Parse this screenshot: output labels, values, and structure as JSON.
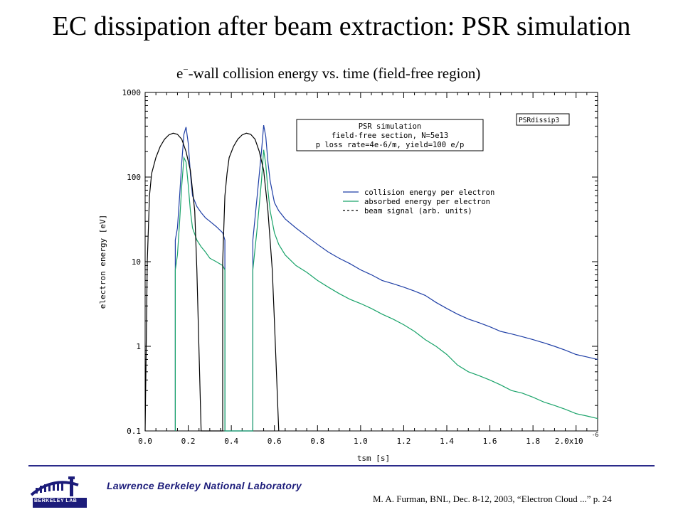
{
  "slide": {
    "title": "EC dissipation after beam extraction: PSR simulation",
    "chart_title_prefix": "e",
    "chart_title_sup": "−",
    "chart_title_rest": "-wall collision energy vs. time (field-free region)"
  },
  "footer": {
    "lab_name": "Lawrence Berkeley National Laboratory",
    "citation": "M. A. Furman, BNL, Dec. 8-12, 2003, “Electron Cloud ...”  p. 24",
    "logo_text": "BERKELEY LAB"
  },
  "colors": {
    "collision": "#1f3fa6",
    "absorbed": "#1aa36a",
    "beam": "#000000",
    "navy": "#1c1c7a"
  },
  "chart_data": {
    "type": "line",
    "tag_label": "PSRdissip3",
    "info_box": [
      "PSR simulation",
      "field-free section, N=5e13",
      "p loss rate=4e-6/m, yield=100 e/p"
    ],
    "xlabel": "tsm [s]",
    "ylabel": "electron energy [eV]",
    "x_scale_label": "2.0x10",
    "x_scale_exp": "-6",
    "xlim": [
      0.0,
      2.1
    ],
    "ylim": [
      0.1,
      1000
    ],
    "yscale": "log",
    "x_ticks": [
      0.0,
      0.2,
      0.4,
      0.6,
      0.8,
      1.0,
      1.2,
      1.4,
      1.6,
      1.8
    ],
    "x_tick_labels": [
      "0.0",
      "0.2",
      "0.4",
      "0.6",
      "0.8",
      "1.0",
      "1.2",
      "1.4",
      "1.6",
      "1.8"
    ],
    "y_ticks": [
      0.1,
      1,
      10,
      100,
      1000
    ],
    "y_tick_labels": [
      "0.1",
      "1",
      "10",
      "100",
      "1000"
    ],
    "legend": [
      "collision energy per electron",
      "absorbed energy per electron",
      "beam signal (arb. units)"
    ],
    "series": [
      {
        "name": "collision energy per electron",
        "style": "solid",
        "x": [
          0.14,
          0.14,
          0.15,
          0.16,
          0.17,
          0.18,
          0.19,
          0.2,
          0.21,
          0.22,
          0.24,
          0.26,
          0.28,
          0.3,
          0.33,
          0.36,
          0.37,
          0.37,
          0.5,
          0.5,
          0.52,
          0.54,
          0.55,
          0.56,
          0.57,
          0.58,
          0.6,
          0.62,
          0.65,
          0.7,
          0.75,
          0.8,
          0.85,
          0.9,
          0.95,
          1.0,
          1.05,
          1.1,
          1.15,
          1.2,
          1.25,
          1.3,
          1.35,
          1.4,
          1.45,
          1.5,
          1.55,
          1.6,
          1.65,
          1.7,
          1.75,
          1.8,
          1.85,
          1.9,
          1.95,
          2.0,
          2.05,
          2.1
        ],
        "y": [
          0.1,
          18,
          25,
          60,
          150,
          320,
          390,
          250,
          110,
          60,
          45,
          38,
          33,
          30,
          26,
          22,
          18,
          0.1,
          0.1,
          18,
          60,
          200,
          410,
          300,
          150,
          90,
          50,
          40,
          32,
          25,
          20,
          16,
          13,
          11,
          9.5,
          8,
          7,
          6,
          5.5,
          5,
          4.5,
          4,
          3.3,
          2.8,
          2.4,
          2.1,
          1.9,
          1.7,
          1.5,
          1.4,
          1.3,
          1.2,
          1.1,
          1.0,
          0.9,
          0.8,
          0.75,
          0.7
        ]
      },
      {
        "name": "absorbed energy per electron",
        "style": "solid",
        "x": [
          0.14,
          0.14,
          0.15,
          0.16,
          0.17,
          0.18,
          0.19,
          0.2,
          0.21,
          0.22,
          0.24,
          0.26,
          0.28,
          0.3,
          0.33,
          0.36,
          0.37,
          0.37,
          0.5,
          0.5,
          0.52,
          0.54,
          0.55,
          0.56,
          0.57,
          0.58,
          0.6,
          0.62,
          0.65,
          0.7,
          0.75,
          0.8,
          0.85,
          0.9,
          0.95,
          1.0,
          1.05,
          1.1,
          1.15,
          1.2,
          1.25,
          1.3,
          1.35,
          1.4,
          1.45,
          1.5,
          1.55,
          1.6,
          1.65,
          1.7,
          1.75,
          1.8,
          1.85,
          1.9,
          1.95,
          2.0,
          2.05,
          2.1
        ],
        "y": [
          0.1,
          8,
          12,
          30,
          80,
          170,
          150,
          80,
          40,
          25,
          18,
          15,
          13,
          11,
          10,
          9,
          8,
          0.1,
          0.1,
          8,
          25,
          90,
          210,
          140,
          70,
          40,
          22,
          16,
          12,
          9,
          7.5,
          6,
          5,
          4.2,
          3.6,
          3.2,
          2.8,
          2.4,
          2.1,
          1.8,
          1.5,
          1.2,
          1.0,
          0.8,
          0.6,
          0.5,
          0.45,
          0.4,
          0.35,
          0.3,
          0.28,
          0.25,
          0.22,
          0.2,
          0.18,
          0.16,
          0.15,
          0.14
        ]
      },
      {
        "name": "beam signal (arb. units)",
        "style": "solid",
        "x": [
          0.0,
          0.01,
          0.02,
          0.03,
          0.05,
          0.07,
          0.09,
          0.11,
          0.13,
          0.15,
          0.17,
          0.19,
          0.21,
          0.23,
          0.24,
          0.26,
          0.26,
          0.36,
          0.36,
          0.37,
          0.38,
          0.39,
          0.41,
          0.43,
          0.45,
          0.47,
          0.49,
          0.51,
          0.53,
          0.55,
          0.57,
          0.59,
          0.6,
          0.62,
          0.62
        ],
        "y": [
          0.1,
          10,
          60,
          110,
          170,
          230,
          280,
          315,
          330,
          320,
          280,
          200,
          120,
          40,
          8,
          0.1,
          0.1,
          0.1,
          10,
          60,
          110,
          170,
          230,
          280,
          315,
          330,
          320,
          280,
          200,
          120,
          40,
          8,
          2,
          0.1,
          0.1
        ]
      }
    ]
  }
}
